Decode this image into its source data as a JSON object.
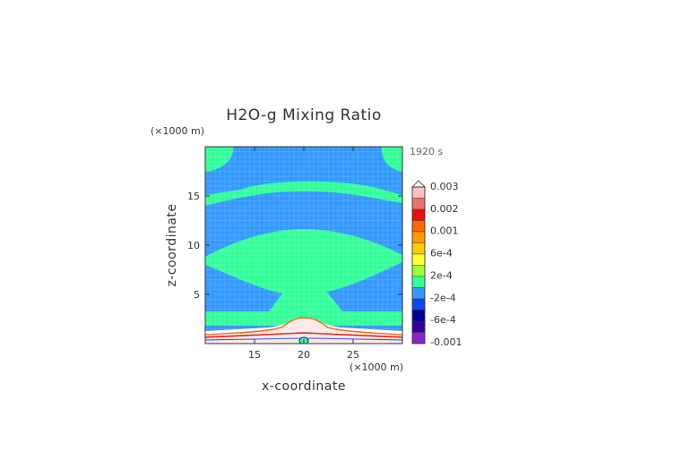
{
  "chart_data": {
    "type": "heatmap",
    "title": "H2O-g Mixing Ratio",
    "xlabel": "x-coordinate",
    "ylabel": "z-coordinate",
    "x_unit": "(×1000 m)",
    "y_unit": "(×1000 m)",
    "time_label": "1920 s",
    "xlim": [
      10,
      30
    ],
    "ylim": [
      0,
      20
    ],
    "x_ticks": [
      15,
      20,
      25
    ],
    "y_ticks": [
      5,
      10,
      15
    ],
    "colorbar": {
      "labels": [
        "0.003",
        "0.002",
        "0.001",
        "6e-4",
        "2e-4",
        "-2e-4",
        "-6e-4",
        "-0.001"
      ],
      "colors": [
        "#f8c0c0",
        "#f07070",
        "#e61010",
        "#ff6600",
        "#ff9900",
        "#ffcc00",
        "#ffff33",
        "#99ff33",
        "#33ff99",
        "#3399ff",
        "#1144ee",
        "#000099",
        "#330099",
        "#8822cc"
      ]
    },
    "field_bands": [
      {
        "z_range": [
          0,
          1
        ],
        "value_class": "high (>0.003)"
      },
      {
        "z_range": [
          1.5,
          3
        ],
        "value_class": "2e-4 to 6e-4"
      },
      {
        "z_range": [
          3,
          5
        ],
        "value_class": "-2e-4 to 2e-4"
      },
      {
        "z_range": [
          5,
          8.5
        ],
        "value_class": "2e-4 to 6e-4"
      },
      {
        "z_range": [
          8.5,
          12
        ],
        "value_class": "-2e-4 to 2e-4"
      },
      {
        "z_range": [
          14,
          17
        ],
        "value_class": "2e-4 to 6e-4"
      }
    ]
  }
}
